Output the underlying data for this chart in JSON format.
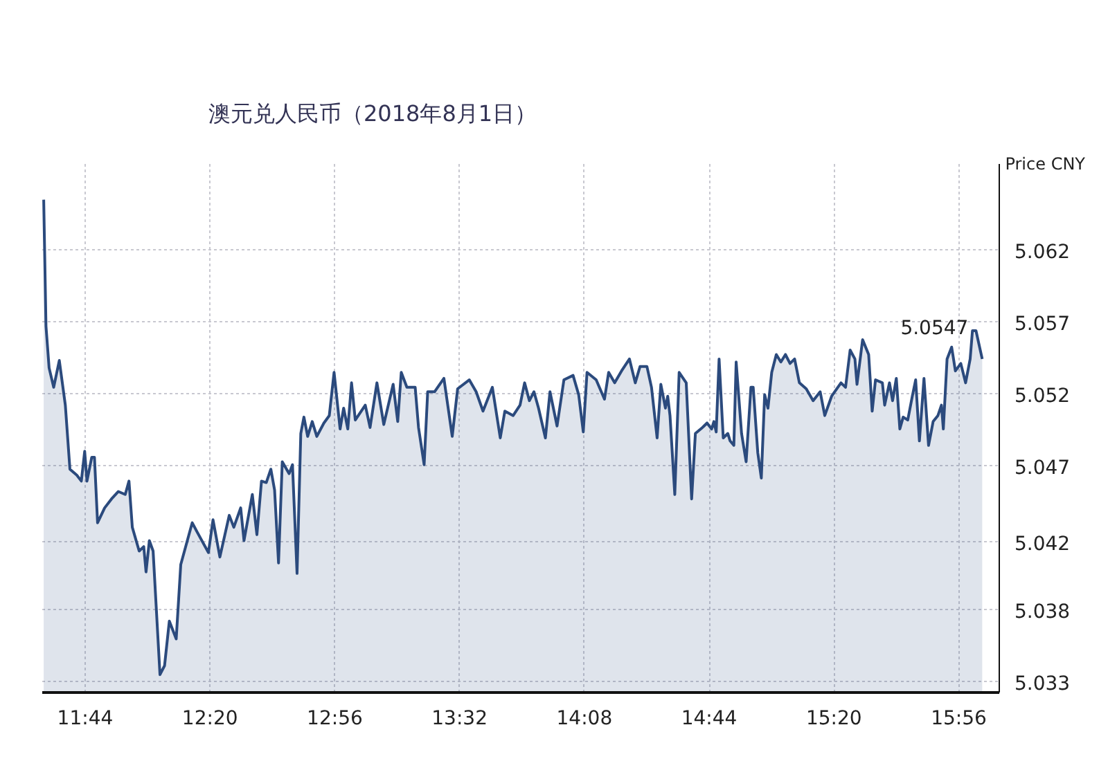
{
  "chart_data": {
    "type": "area",
    "title": "澳元兑人民币（2018年8月1日）",
    "ylabel": "Price CNY",
    "annotations": [
      {
        "text": "5.0547",
        "x": 16.046,
        "y": 5.0547
      }
    ],
    "xlim": [
      11.527,
      16.128
    ],
    "ylim": [
      5.0323,
      5.0678
    ],
    "xticks": [
      {
        "value": 11.7333,
        "label": "11:44"
      },
      {
        "value": 12.3333,
        "label": "12:20"
      },
      {
        "value": 12.9333,
        "label": "12:56"
      },
      {
        "value": 13.5333,
        "label": "13:32"
      },
      {
        "value": 14.1333,
        "label": "14:08"
      },
      {
        "value": 14.7333,
        "label": "14:44"
      },
      {
        "value": 15.3333,
        "label": "15:20"
      },
      {
        "value": 15.9333,
        "label": "15:56"
      }
    ],
    "yticks": [
      {
        "value": 5.033,
        "label": "5.033"
      },
      {
        "value": 5.03783,
        "label": "5.038"
      },
      {
        "value": 5.0424,
        "label": "5.042"
      },
      {
        "value": 5.0475,
        "label": "5.047"
      },
      {
        "value": 5.05233,
        "label": "5.052"
      },
      {
        "value": 5.05717,
        "label": "5.057"
      },
      {
        "value": 5.062,
        "label": "5.062"
      }
    ],
    "grid": true,
    "series": [
      {
        "color": "#2b4a7d",
        "x": [
          11.534,
          11.545,
          11.56,
          11.582,
          11.609,
          11.638,
          11.66,
          11.693,
          11.715,
          11.731,
          11.742,
          11.765,
          11.778,
          11.793,
          11.827,
          11.86,
          11.893,
          11.926,
          11.944,
          11.96,
          11.993,
          12.015,
          12.026,
          12.042,
          12.06,
          12.093,
          12.115,
          12.138,
          12.171,
          12.193,
          12.248,
          12.271,
          12.326,
          12.348,
          12.381,
          12.426,
          12.448,
          12.481,
          12.497,
          12.537,
          12.559,
          12.581,
          12.604,
          12.626,
          12.644,
          12.663,
          12.681,
          12.714,
          12.73,
          12.752,
          12.77,
          12.785,
          12.803,
          12.825,
          12.847,
          12.881,
          12.907,
          12.93,
          12.959,
          12.976,
          12.996,
          13.014,
          13.032,
          13.08,
          13.103,
          13.136,
          13.169,
          13.214,
          13.236,
          13.253,
          13.28,
          13.32,
          13.336,
          13.363,
          13.38,
          13.413,
          13.458,
          13.498,
          13.524,
          13.58,
          13.613,
          13.646,
          13.691,
          13.729,
          13.751,
          13.791,
          13.824,
          13.846,
          13.869,
          13.891,
          13.913,
          13.946,
          13.968,
          14.002,
          14.035,
          14.079,
          14.106,
          14.128,
          14.146,
          14.19,
          14.23,
          14.25,
          14.279,
          14.312,
          14.35,
          14.378,
          14.401,
          14.434,
          14.456,
          14.483,
          14.501,
          14.523,
          14.534,
          14.545,
          14.568,
          14.589,
          14.623,
          14.649,
          14.667,
          14.701,
          14.723,
          14.745,
          14.756,
          14.767,
          14.781,
          14.801,
          14.823,
          14.834,
          14.852,
          14.863,
          14.889,
          14.911,
          14.934,
          14.945,
          14.967,
          14.984,
          15.0,
          15.016,
          15.034,
          15.056,
          15.078,
          15.1,
          15.122,
          15.144,
          15.167,
          15.2,
          15.233,
          15.267,
          15.289,
          15.322,
          15.367,
          15.389,
          15.411,
          15.434,
          15.444,
          15.471,
          15.5,
          15.517,
          15.533,
          15.566,
          15.577,
          15.6,
          15.615,
          15.633,
          15.65,
          15.666,
          15.688,
          15.71,
          15.726,
          15.744,
          15.766,
          15.788,
          15.81,
          15.833,
          15.85,
          15.859,
          15.877,
          15.899,
          15.917,
          15.943,
          15.966,
          15.988,
          15.999,
          16.016,
          16.046
        ],
        "values": [
          5.0654,
          5.0569,
          5.0541,
          5.0528,
          5.0546,
          5.0516,
          5.0473,
          5.0469,
          5.0465,
          5.0485,
          5.0465,
          5.0481,
          5.0481,
          5.0437,
          5.0447,
          5.0453,
          5.0458,
          5.0456,
          5.0465,
          5.0434,
          5.0418,
          5.0421,
          5.0404,
          5.0425,
          5.0418,
          5.0335,
          5.0341,
          5.0371,
          5.0359,
          5.0409,
          5.0437,
          5.0431,
          5.0417,
          5.0439,
          5.0414,
          5.0442,
          5.0434,
          5.0447,
          5.0425,
          5.0456,
          5.0429,
          5.0465,
          5.0464,
          5.0473,
          5.0459,
          5.041,
          5.0478,
          5.047,
          5.0476,
          5.0403,
          5.0497,
          5.0508,
          5.0495,
          5.0505,
          5.0495,
          5.0504,
          5.0509,
          5.0538,
          5.05,
          5.0514,
          5.05,
          5.0531,
          5.0506,
          5.0516,
          5.0501,
          5.0531,
          5.0503,
          5.053,
          5.0505,
          5.0538,
          5.0528,
          5.0528,
          5.0501,
          5.0476,
          5.0525,
          5.0525,
          5.0534,
          5.0495,
          5.0527,
          5.0533,
          5.0525,
          5.0512,
          5.0528,
          5.0494,
          5.0512,
          5.0509,
          5.0516,
          5.0531,
          5.0519,
          5.0525,
          5.0514,
          5.0494,
          5.0525,
          5.0502,
          5.0533,
          5.0536,
          5.0523,
          5.0498,
          5.0538,
          5.0533,
          5.052,
          5.0538,
          5.0531,
          5.0539,
          5.0547,
          5.0531,
          5.0542,
          5.0542,
          5.0528,
          5.0494,
          5.053,
          5.0514,
          5.0522,
          5.0509,
          5.0456,
          5.0538,
          5.0531,
          5.0453,
          5.0497,
          5.0501,
          5.0504,
          5.05,
          5.0505,
          5.0498,
          5.0547,
          5.0494,
          5.0497,
          5.0492,
          5.0489,
          5.0545,
          5.0497,
          5.0478,
          5.0528,
          5.0528,
          5.0484,
          5.0467,
          5.0523,
          5.0514,
          5.0538,
          5.055,
          5.0545,
          5.055,
          5.0544,
          5.0547,
          5.0531,
          5.0527,
          5.0519,
          5.0525,
          5.0509,
          5.0522,
          5.0531,
          5.0528,
          5.0553,
          5.0547,
          5.053,
          5.056,
          5.055,
          5.0512,
          5.0533,
          5.0531,
          5.0516,
          5.0531,
          5.0519,
          5.0534,
          5.05,
          5.0508,
          5.0506,
          5.0522,
          5.0533,
          5.0492,
          5.0534,
          5.0489,
          5.0505,
          5.0509,
          5.0516,
          5.05,
          5.0547,
          5.0555,
          5.0539,
          5.0544,
          5.0531,
          5.0547,
          5.0566,
          5.0566,
          5.0547
        ]
      }
    ]
  }
}
